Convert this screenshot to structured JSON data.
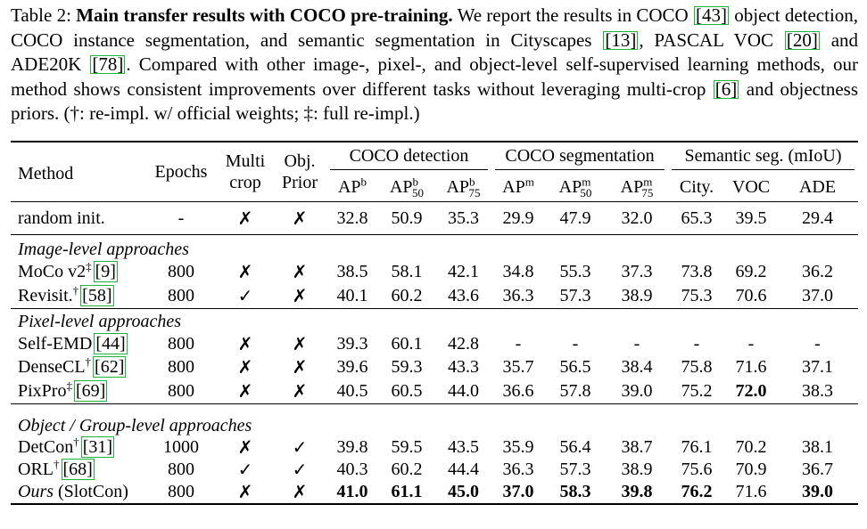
{
  "caption": {
    "label": "Table 2:",
    "title": "Main transfer results with COCO pre-training.",
    "text_1": "We report the results in COCO",
    "cite_43": "43",
    "text_2": "object detection, COCO instance segmentation, and semantic segmentation in Cityscapes",
    "cite_13": "13",
    "text_3": ", PASCAL VOC",
    "cite_20": "20",
    "text_4": "and ADE20K",
    "cite_78": "78",
    "text_5": ". Compared with other image-, pixel-, and object-level self-supervised learning methods, our method shows consistent improvements over different tasks without leveraging multi-crop",
    "cite_6": "6",
    "text_6": "and objectness priors. (†: re-impl. w/ official weights; ‡: full re-impl.)"
  },
  "header": {
    "method": "Method",
    "epochs": "Epochs",
    "multi_crop_1": "Multi",
    "multi_crop_2": "crop",
    "obj_prior_1": "Obj.",
    "obj_prior_2": "Prior",
    "coco_det": "COCO detection",
    "coco_seg": "COCO segmentation",
    "sem_seg": "Semantic seg. (mIoU)",
    "ap_base": "AP",
    "sup_b": "b",
    "sup_m": "m",
    "sub_50": "50",
    "sub_75": "75",
    "city": "City.",
    "voc": "VOC",
    "ade": "ADE"
  },
  "marks": {
    "cross": "✗",
    "check": "✓"
  },
  "groups": {
    "image": "Image-level approaches",
    "pixel": "Pixel-level approaches",
    "object": "Object / Group-level approaches"
  },
  "rows": [
    {
      "method": "random init.",
      "sup": "",
      "cite": "",
      "epochs": "-",
      "multi": "✗",
      "obj": "✗",
      "vals": [
        "32.8",
        "50.9",
        "35.3",
        "29.9",
        "47.9",
        "32.0",
        "65.3",
        "39.5",
        "29.4"
      ],
      "bold": []
    },
    {
      "method": "MoCo v2",
      "sup": "‡",
      "cite": "9",
      "epochs": "800",
      "multi": "✗",
      "obj": "✗",
      "vals": [
        "38.5",
        "58.1",
        "42.1",
        "34.8",
        "55.3",
        "37.3",
        "73.8",
        "69.2",
        "36.2"
      ],
      "bold": []
    },
    {
      "method": "Revisit.",
      "sup": "†",
      "cite": "58",
      "epochs": "800",
      "multi": "✓",
      "obj": "✗",
      "vals": [
        "40.1",
        "60.2",
        "43.6",
        "36.3",
        "57.3",
        "38.9",
        "75.3",
        "70.6",
        "37.0"
      ],
      "bold": []
    },
    {
      "method": "Self-EMD",
      "sup": "",
      "cite": "44",
      "epochs": "800",
      "multi": "✗",
      "obj": "✗",
      "vals": [
        "39.3",
        "60.1",
        "42.8",
        "-",
        "-",
        "-",
        "-",
        "-",
        "-"
      ],
      "bold": []
    },
    {
      "method": "DenseCL",
      "sup": "†",
      "cite": "62",
      "epochs": "800",
      "multi": "✗",
      "obj": "✗",
      "vals": [
        "39.6",
        "59.3",
        "43.3",
        "35.7",
        "56.5",
        "38.4",
        "75.8",
        "71.6",
        "37.1"
      ],
      "bold": []
    },
    {
      "method": "PixPro",
      "sup": "‡",
      "cite": "69",
      "epochs": "800",
      "multi": "✗",
      "obj": "✗",
      "vals": [
        "40.5",
        "60.5",
        "44.0",
        "36.6",
        "57.8",
        "39.0",
        "75.2",
        "72.0",
        "38.3"
      ],
      "bold": [
        7
      ]
    },
    {
      "method": "DetCon",
      "sup": "†",
      "cite": "31",
      "epochs": "1000",
      "multi": "✗",
      "obj": "✓",
      "vals": [
        "39.8",
        "59.5",
        "43.5",
        "35.9",
        "56.4",
        "38.7",
        "76.1",
        "70.2",
        "38.1"
      ],
      "bold": []
    },
    {
      "method": "ORL",
      "sup": "†",
      "cite": "68",
      "epochs": "800",
      "multi": "✓",
      "obj": "✓",
      "vals": [
        "40.3",
        "60.2",
        "44.4",
        "36.3",
        "57.3",
        "38.9",
        "75.6",
        "70.9",
        "36.7"
      ],
      "bold": []
    },
    {
      "method": "Ours",
      "sup": "",
      "cite": "",
      "suffix": "(SlotCon)",
      "epochs": "800",
      "multi": "✗",
      "obj": "✗",
      "vals": [
        "41.0",
        "61.1",
        "45.0",
        "37.0",
        "58.3",
        "39.8",
        "76.2",
        "71.6",
        "39.0"
      ],
      "bold": [
        0,
        1,
        2,
        3,
        4,
        5,
        6,
        8
      ]
    }
  ]
}
